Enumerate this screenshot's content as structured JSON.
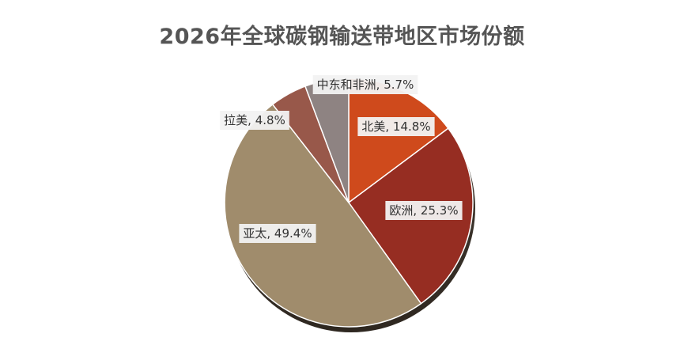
{
  "chart_data": {
    "type": "pie",
    "title": "2026年全球碳钢输送带地区市场份额",
    "start_angle_deg": 0,
    "direction": "clockwise",
    "slices": [
      {
        "name": "北美",
        "value": 14.8,
        "label": "北美, 14.8%",
        "color": "#CF4A1C"
      },
      {
        "name": "欧洲",
        "value": 25.3,
        "label": "欧洲, 25.3%",
        "color": "#962D22"
      },
      {
        "name": "亚太",
        "value": 49.4,
        "label": "亚太, 49.4%",
        "color": "#A08C6C"
      },
      {
        "name": "拉美",
        "value": 4.8,
        "label": "拉美, 4.8%",
        "color": "#98584A"
      },
      {
        "name": "中东和非洲",
        "value": 5.7,
        "label": "中东和非洲, 5.7%",
        "color": "#8E8382"
      }
    ]
  }
}
